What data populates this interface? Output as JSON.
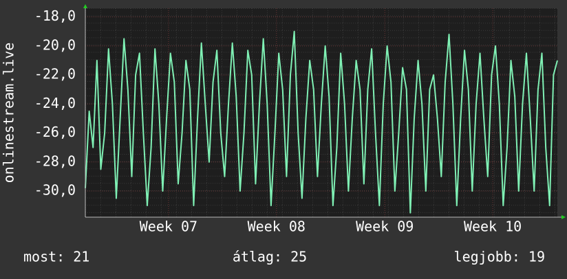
{
  "chart_data": {
    "type": "line",
    "ylabel": "onlinestream.live",
    "series": [
      {
        "color": "#7ff0b4",
        "values": [
          -29.8,
          -24.5,
          -27,
          -21,
          -28.5,
          -26,
          -20.2,
          -24,
          -30.5,
          -25,
          -19.5,
          -23,
          -29,
          -22,
          -20.5,
          -26,
          -31,
          -27,
          -20.2,
          -24,
          -30,
          -25,
          -20.5,
          -22.5,
          -29.5,
          -26,
          -21,
          -23,
          -31,
          -25,
          -19.8,
          -24,
          -28,
          -22.5,
          -20.3,
          -26,
          -29,
          -24,
          -19.8,
          -23.5,
          -30,
          -26,
          -20.3,
          -22,
          -29.5,
          -24,
          -19.5,
          -24,
          -31,
          -26,
          -20.5,
          -23,
          -29,
          -22,
          -19,
          -26,
          -30.5,
          -25,
          -21,
          -23,
          -29,
          -24,
          -20,
          -23.5,
          -31,
          -27,
          -20.5,
          -24,
          -30,
          -25,
          -21,
          -23,
          -29.5,
          -23,
          -20.2,
          -26,
          -31,
          -24,
          -20,
          -22.5,
          -30,
          -26,
          -21.5,
          -23,
          -31.5,
          -25,
          -21,
          -24,
          -30,
          -23,
          -22,
          -25,
          -29,
          -22.5,
          -19.2,
          -24,
          -31,
          -25,
          -20.3,
          -23,
          -30,
          -24,
          -20.5,
          -25,
          -29,
          -22,
          -20,
          -24,
          -31,
          -27,
          -21,
          -23.5,
          -30,
          -24,
          -20.5,
          -25,
          -30,
          -23,
          -20.5,
          -27,
          -31,
          -22,
          -21
        ]
      }
    ],
    "xlim": [
      0,
      122
    ],
    "xticks": [
      {
        "value": 21.5,
        "label": "Week 07"
      },
      {
        "value": 49.4,
        "label": "Week 08"
      },
      {
        "value": 77.4,
        "label": "Week 09"
      },
      {
        "value": 105.3,
        "label": "Week 10"
      }
    ],
    "ylim": [
      -31.8,
      -17.4
    ],
    "yticks": [
      {
        "value": -18,
        "label": "-18,0"
      },
      {
        "value": -20,
        "label": "-20,0"
      },
      {
        "value": -22,
        "label": "-22,0"
      },
      {
        "value": -24,
        "label": "-24,0"
      },
      {
        "value": -26,
        "label": "-26,0"
      },
      {
        "value": -28,
        "label": "-28,0"
      },
      {
        "value": -30,
        "label": "-30,0"
      }
    ],
    "grid": true,
    "annotations": [
      "most: 21",
      "átlag: 25",
      "legjobb: 19"
    ]
  }
}
